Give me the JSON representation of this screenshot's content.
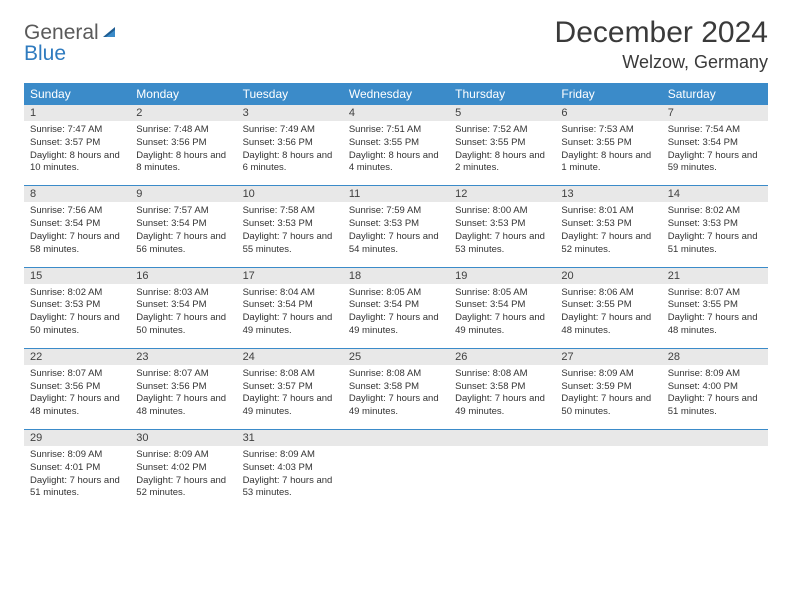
{
  "brand": {
    "part1": "General",
    "part2": "Blue"
  },
  "title": "December 2024",
  "location": "Welzow, Germany",
  "colors": {
    "header_bar": "#3b8bc9",
    "separator": "#3b8bc9",
    "daynum_bg": "#e8e8e8",
    "text": "#333333",
    "title_text": "#3a3a3a",
    "logo_gray": "#5a5a5a",
    "logo_blue": "#2f7bbf",
    "page_bg": "#ffffff"
  },
  "typography": {
    "title_fontsize": 30,
    "location_fontsize": 18,
    "dow_fontsize": 12,
    "daynum_fontsize": 11,
    "info_fontsize": 9.5
  },
  "dows": [
    "Sunday",
    "Monday",
    "Tuesday",
    "Wednesday",
    "Thursday",
    "Friday",
    "Saturday"
  ],
  "weeks": [
    [
      {
        "n": "1",
        "sr": "Sunrise: 7:47 AM",
        "ss": "Sunset: 3:57 PM",
        "dl": "Daylight: 8 hours and 10 minutes."
      },
      {
        "n": "2",
        "sr": "Sunrise: 7:48 AM",
        "ss": "Sunset: 3:56 PM",
        "dl": "Daylight: 8 hours and 8 minutes."
      },
      {
        "n": "3",
        "sr": "Sunrise: 7:49 AM",
        "ss": "Sunset: 3:56 PM",
        "dl": "Daylight: 8 hours and 6 minutes."
      },
      {
        "n": "4",
        "sr": "Sunrise: 7:51 AM",
        "ss": "Sunset: 3:55 PM",
        "dl": "Daylight: 8 hours and 4 minutes."
      },
      {
        "n": "5",
        "sr": "Sunrise: 7:52 AM",
        "ss": "Sunset: 3:55 PM",
        "dl": "Daylight: 8 hours and 2 minutes."
      },
      {
        "n": "6",
        "sr": "Sunrise: 7:53 AM",
        "ss": "Sunset: 3:55 PM",
        "dl": "Daylight: 8 hours and 1 minute."
      },
      {
        "n": "7",
        "sr": "Sunrise: 7:54 AM",
        "ss": "Sunset: 3:54 PM",
        "dl": "Daylight: 7 hours and 59 minutes."
      }
    ],
    [
      {
        "n": "8",
        "sr": "Sunrise: 7:56 AM",
        "ss": "Sunset: 3:54 PM",
        "dl": "Daylight: 7 hours and 58 minutes."
      },
      {
        "n": "9",
        "sr": "Sunrise: 7:57 AM",
        "ss": "Sunset: 3:54 PM",
        "dl": "Daylight: 7 hours and 56 minutes."
      },
      {
        "n": "10",
        "sr": "Sunrise: 7:58 AM",
        "ss": "Sunset: 3:53 PM",
        "dl": "Daylight: 7 hours and 55 minutes."
      },
      {
        "n": "11",
        "sr": "Sunrise: 7:59 AM",
        "ss": "Sunset: 3:53 PM",
        "dl": "Daylight: 7 hours and 54 minutes."
      },
      {
        "n": "12",
        "sr": "Sunrise: 8:00 AM",
        "ss": "Sunset: 3:53 PM",
        "dl": "Daylight: 7 hours and 53 minutes."
      },
      {
        "n": "13",
        "sr": "Sunrise: 8:01 AM",
        "ss": "Sunset: 3:53 PM",
        "dl": "Daylight: 7 hours and 52 minutes."
      },
      {
        "n": "14",
        "sr": "Sunrise: 8:02 AM",
        "ss": "Sunset: 3:53 PM",
        "dl": "Daylight: 7 hours and 51 minutes."
      }
    ],
    [
      {
        "n": "15",
        "sr": "Sunrise: 8:02 AM",
        "ss": "Sunset: 3:53 PM",
        "dl": "Daylight: 7 hours and 50 minutes."
      },
      {
        "n": "16",
        "sr": "Sunrise: 8:03 AM",
        "ss": "Sunset: 3:54 PM",
        "dl": "Daylight: 7 hours and 50 minutes."
      },
      {
        "n": "17",
        "sr": "Sunrise: 8:04 AM",
        "ss": "Sunset: 3:54 PM",
        "dl": "Daylight: 7 hours and 49 minutes."
      },
      {
        "n": "18",
        "sr": "Sunrise: 8:05 AM",
        "ss": "Sunset: 3:54 PM",
        "dl": "Daylight: 7 hours and 49 minutes."
      },
      {
        "n": "19",
        "sr": "Sunrise: 8:05 AM",
        "ss": "Sunset: 3:54 PM",
        "dl": "Daylight: 7 hours and 49 minutes."
      },
      {
        "n": "20",
        "sr": "Sunrise: 8:06 AM",
        "ss": "Sunset: 3:55 PM",
        "dl": "Daylight: 7 hours and 48 minutes."
      },
      {
        "n": "21",
        "sr": "Sunrise: 8:07 AM",
        "ss": "Sunset: 3:55 PM",
        "dl": "Daylight: 7 hours and 48 minutes."
      }
    ],
    [
      {
        "n": "22",
        "sr": "Sunrise: 8:07 AM",
        "ss": "Sunset: 3:56 PM",
        "dl": "Daylight: 7 hours and 48 minutes."
      },
      {
        "n": "23",
        "sr": "Sunrise: 8:07 AM",
        "ss": "Sunset: 3:56 PM",
        "dl": "Daylight: 7 hours and 48 minutes."
      },
      {
        "n": "24",
        "sr": "Sunrise: 8:08 AM",
        "ss": "Sunset: 3:57 PM",
        "dl": "Daylight: 7 hours and 49 minutes."
      },
      {
        "n": "25",
        "sr": "Sunrise: 8:08 AM",
        "ss": "Sunset: 3:58 PM",
        "dl": "Daylight: 7 hours and 49 minutes."
      },
      {
        "n": "26",
        "sr": "Sunrise: 8:08 AM",
        "ss": "Sunset: 3:58 PM",
        "dl": "Daylight: 7 hours and 49 minutes."
      },
      {
        "n": "27",
        "sr": "Sunrise: 8:09 AM",
        "ss": "Sunset: 3:59 PM",
        "dl": "Daylight: 7 hours and 50 minutes."
      },
      {
        "n": "28",
        "sr": "Sunrise: 8:09 AM",
        "ss": "Sunset: 4:00 PM",
        "dl": "Daylight: 7 hours and 51 minutes."
      }
    ],
    [
      {
        "n": "29",
        "sr": "Sunrise: 8:09 AM",
        "ss": "Sunset: 4:01 PM",
        "dl": "Daylight: 7 hours and 51 minutes."
      },
      {
        "n": "30",
        "sr": "Sunrise: 8:09 AM",
        "ss": "Sunset: 4:02 PM",
        "dl": "Daylight: 7 hours and 52 minutes."
      },
      {
        "n": "31",
        "sr": "Sunrise: 8:09 AM",
        "ss": "Sunset: 4:03 PM",
        "dl": "Daylight: 7 hours and 53 minutes."
      },
      {
        "n": "",
        "sr": "",
        "ss": "",
        "dl": ""
      },
      {
        "n": "",
        "sr": "",
        "ss": "",
        "dl": ""
      },
      {
        "n": "",
        "sr": "",
        "ss": "",
        "dl": ""
      },
      {
        "n": "",
        "sr": "",
        "ss": "",
        "dl": ""
      }
    ]
  ]
}
